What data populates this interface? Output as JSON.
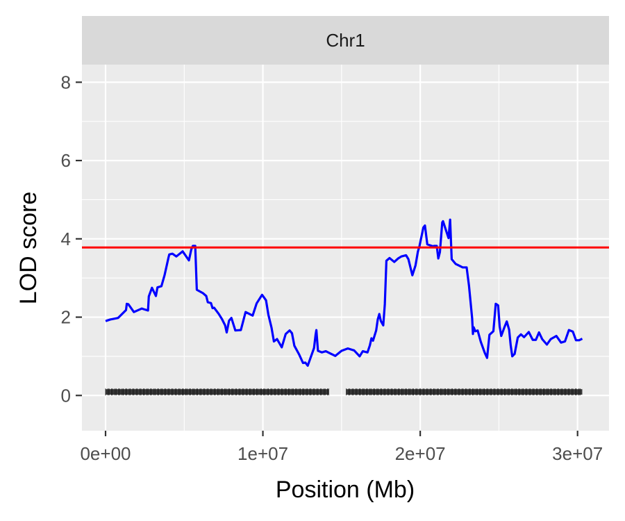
{
  "chart_data": {
    "type": "line",
    "facet_label": "Chr1",
    "xlabel": "Position (Mb)",
    "ylabel": "LOD score",
    "xlim": [
      -1500000,
      32000000
    ],
    "ylim": [
      -0.9,
      8.45
    ],
    "x_ticks": [
      {
        "value": 0,
        "label": "0e+00"
      },
      {
        "value": 10000000,
        "label": "1e+07"
      },
      {
        "value": 20000000,
        "label": "2e+07"
      },
      {
        "value": 30000000,
        "label": "3e+07"
      }
    ],
    "y_ticks": [
      {
        "value": 0,
        "label": "0"
      },
      {
        "value": 2,
        "label": "2"
      },
      {
        "value": 4,
        "label": "4"
      },
      {
        "value": 6,
        "label": "6"
      },
      {
        "value": 8,
        "label": "8"
      }
    ],
    "threshold": {
      "value": 3.78,
      "color": "#ff0000"
    },
    "series": [
      {
        "color": "#0000ff",
        "x": [
          0,
          300000,
          800000,
          1300000,
          1350000,
          1450000,
          1800000,
          2300000,
          2450000,
          2700000,
          2750000,
          2950000,
          3200000,
          3300000,
          3550000,
          3750000,
          4000000,
          4050000,
          4250000,
          4500000,
          4900000,
          5300000,
          5450000,
          5550000,
          5700000,
          5800000,
          6200000,
          6400000,
          6500000,
          6700000,
          6800000,
          6900000,
          7200000,
          7400000,
          7600000,
          7700000,
          7850000,
          8000000,
          8250000,
          8600000,
          8900000,
          9350000,
          9600000,
          9950000,
          10200000,
          10350000,
          10550000,
          10700000,
          10900000,
          11200000,
          11450000,
          11700000,
          11850000,
          12000000,
          12300000,
          12550000,
          12700000,
          12850000,
          13250000,
          13350000,
          13400000,
          13500000,
          13750000,
          14000000,
          14250000,
          14600000,
          15000000,
          15400000,
          15800000,
          16150000,
          16350000,
          16650000,
          16800000,
          16900000,
          17000000,
          17200000,
          17300000,
          17400000,
          17500000,
          17650000,
          17750000,
          17850000,
          18050000,
          18350000,
          18600000,
          18800000,
          19100000,
          19250000,
          19500000,
          19700000,
          19850000,
          19950000,
          20200000,
          20300000,
          20450000,
          20800000,
          20900000,
          21050000,
          21150000,
          21250000,
          21400000,
          21450000,
          21800000,
          21900000,
          22000000,
          22250000,
          22400000,
          22700000,
          22950000,
          23100000,
          23300000,
          23350000,
          23400000,
          23500000,
          23650000,
          23850000,
          24100000,
          24250000,
          24400000,
          24650000,
          24800000,
          24950000,
          25050000,
          25150000,
          25350000,
          25500000,
          25650000,
          25750000,
          25850000,
          26000000,
          26200000,
          26400000,
          26600000,
          26900000,
          27150000,
          27350000,
          27550000,
          27750000,
          28050000,
          28300000,
          28650000,
          28950000,
          29200000,
          29450000,
          29700000,
          29900000,
          30100000,
          30300000
        ],
        "y": [
          1.9,
          1.94,
          1.98,
          2.18,
          2.34,
          2.33,
          2.13,
          2.22,
          2.2,
          2.17,
          2.53,
          2.75,
          2.54,
          2.76,
          2.79,
          3.07,
          3.52,
          3.6,
          3.62,
          3.55,
          3.68,
          3.45,
          3.73,
          3.82,
          3.82,
          2.7,
          2.61,
          2.54,
          2.38,
          2.36,
          2.23,
          2.24,
          2.08,
          1.95,
          1.79,
          1.61,
          1.91,
          1.98,
          1.66,
          1.67,
          2.13,
          2.04,
          2.35,
          2.57,
          2.43,
          2.06,
          1.73,
          1.38,
          1.44,
          1.23,
          1.57,
          1.66,
          1.59,
          1.27,
          1.05,
          0.83,
          0.84,
          0.76,
          1.21,
          1.55,
          1.67,
          1.14,
          1.1,
          1.13,
          1.08,
          1.01,
          1.14,
          1.2,
          1.15,
          1.0,
          1.13,
          1.1,
          1.28,
          1.46,
          1.4,
          1.66,
          1.94,
          2.08,
          1.9,
          1.79,
          2.33,
          3.44,
          3.51,
          3.41,
          3.5,
          3.55,
          3.58,
          3.48,
          3.07,
          3.32,
          3.67,
          3.81,
          4.29,
          4.34,
          3.86,
          3.81,
          3.82,
          3.82,
          3.5,
          3.66,
          4.42,
          4.45,
          4.02,
          4.49,
          3.48,
          3.36,
          3.33,
          3.27,
          3.27,
          2.8,
          1.97,
          1.57,
          1.74,
          1.64,
          1.66,
          1.37,
          1.09,
          0.96,
          1.55,
          1.64,
          2.34,
          2.3,
          1.76,
          1.52,
          1.74,
          1.89,
          1.68,
          1.28,
          1.0,
          1.06,
          1.48,
          1.56,
          1.49,
          1.62,
          1.42,
          1.42,
          1.61,
          1.44,
          1.3,
          1.44,
          1.52,
          1.35,
          1.38,
          1.67,
          1.63,
          1.41,
          1.41,
          1.45
        ]
      }
    ],
    "marker_rug": {
      "y": 0.09,
      "color": "#1a1a1a",
      "segments": [
        [
          0,
          14200000
        ],
        [
          15300000,
          30300000
        ]
      ]
    }
  }
}
